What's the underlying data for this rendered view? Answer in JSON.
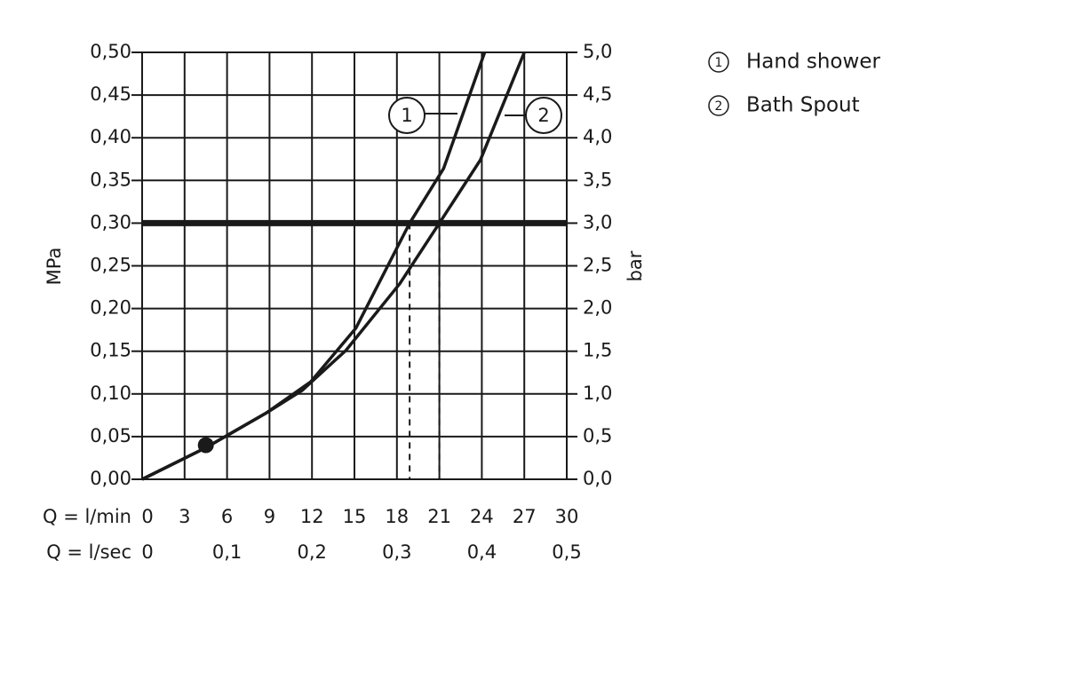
{
  "chart_data": {
    "type": "line",
    "y_label": "MPa",
    "y2_label": "bar",
    "x_label": "Q = l/min",
    "x2_label": "Q = l/sec",
    "xlim": [
      0,
      30
    ],
    "xticks": [
      0,
      3,
      6,
      9,
      12,
      15,
      18,
      21,
      24,
      27,
      30
    ],
    "x2lim": [
      0,
      0.5
    ],
    "x2ticks": [
      0,
      {
        "value": 0.1,
        "label": "0,1"
      },
      {
        "value": 0.2,
        "label": "0,2"
      },
      {
        "value": 0.3,
        "label": "0,3"
      },
      {
        "value": 0.4,
        "label": "0,4"
      },
      {
        "value": 0.5,
        "label": "0,5"
      }
    ],
    "ylim": [
      0,
      0.5
    ],
    "yticks": [
      {
        "value": 0,
        "label": "0,00"
      },
      {
        "value": 0.05,
        "label": "0,05"
      },
      {
        "value": 0.1,
        "label": "0,10"
      },
      {
        "value": 0.15,
        "label": "0,15"
      },
      {
        "value": 0.2,
        "label": "0,20"
      },
      {
        "value": 0.25,
        "label": "0,25"
      },
      {
        "value": 0.3,
        "label": "0,30"
      },
      {
        "value": 0.35,
        "label": "0,35"
      },
      {
        "value": 0.4,
        "label": "0,40"
      },
      {
        "value": 0.45,
        "label": "0,45"
      },
      {
        "value": 0.5,
        "label": "0,50"
      }
    ],
    "y2lim": [
      0,
      5
    ],
    "y2ticks": [
      {
        "value": 0,
        "label": "0,0"
      },
      {
        "value": 0.5,
        "label": "0,5"
      },
      {
        "value": 1,
        "label": "1,0"
      },
      {
        "value": 1.5,
        "label": "1,5"
      },
      {
        "value": 2,
        "label": "2,0"
      },
      {
        "value": 2.5,
        "label": "2,5"
      },
      {
        "value": 3,
        "label": "3,0"
      },
      {
        "value": 3.5,
        "label": "3,5"
      },
      {
        "value": 4,
        "label": "4,0"
      },
      {
        "value": 4.5,
        "label": "4,5"
      },
      {
        "value": 5,
        "label": "5,0"
      }
    ],
    "grid": true,
    "color": "#1a1a1a",
    "series": [
      {
        "name": "Hand shower",
        "label": "1",
        "color": "#1a1a1a",
        "x": [
          0,
          4.5,
          8.8,
          11.9,
          15.1,
          18.9,
          21.3,
          24.2
        ],
        "values": [
          0,
          0.037,
          0.078,
          0.114,
          0.177,
          0.3,
          0.364,
          0.5
        ]
      },
      {
        "name": "Bath Spout",
        "label": "2",
        "color": "#1a1a1a",
        "x": [
          0,
          4.5,
          8.8,
          11.3,
          14.4,
          18.2,
          21.0,
          23.9,
          27.0
        ],
        "values": [
          0,
          0.037,
          0.078,
          0.104,
          0.151,
          0.229,
          0.3,
          0.374,
          0.5
        ]
      }
    ],
    "reference_line": 0.3,
    "drop_lines": [
      {
        "x": 18.9,
        "y": 0.3
      },
      {
        "x": 21.0,
        "y": 0.3
      }
    ],
    "points": [
      {
        "x": 4.5,
        "y": 0.04
      }
    ]
  }
}
